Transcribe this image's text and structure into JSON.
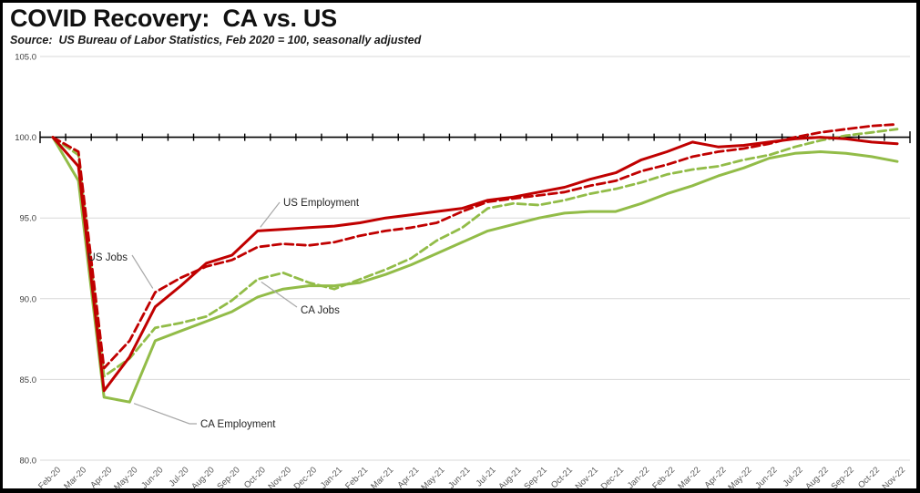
{
  "header": {
    "title": "COVID Recovery:  CA vs. US",
    "source": "Source:  US Bureau of Labor Statistics, Feb 2020 = 100, seasonally adjusted"
  },
  "chart_data": {
    "type": "line",
    "title": "COVID Recovery:  CA vs. US",
    "subtitle": "Source:  US Bureau of Labor Statistics, Feb 2020 = 100, seasonally adjusted",
    "x_categories": [
      "Feb-20",
      "Mar-20",
      "Apr-20",
      "May-20",
      "Jun-20",
      "Jul-20",
      "Aug-20",
      "Sep-20",
      "Oct-20",
      "Nov-20",
      "Dec-20",
      "Jan-21",
      "Feb-21",
      "Mar-21",
      "Apr-21",
      "May-21",
      "Jun-21",
      "Jul-21",
      "Aug-21",
      "Sep-21",
      "Oct-21",
      "Nov-21",
      "Dec-21",
      "Jan-22",
      "Feb-22",
      "Mar-22",
      "Apr-22",
      "May-22",
      "Jun-22",
      "Jul-22",
      "Aug-22",
      "Sep-22",
      "Oct-22",
      "Nov-22"
    ],
    "y_tick_labels": [
      "105.0",
      "100.0",
      "95.0",
      "90.0",
      "85.0",
      "80.0"
    ],
    "ylim": [
      80,
      105
    ],
    "x_axis_crosses_at": 100,
    "grid": "horizontal",
    "legend_position": "none (inline callout labels)",
    "colors": {
      "us": "#C00000",
      "ca": "#92BC48",
      "grid": "#d9d9d9",
      "axis": "#000000",
      "callout": "#a8a8a8",
      "tick_text": "#595959"
    },
    "series": [
      {
        "name": "CA Employment",
        "color": "#92BC48",
        "line_style": "solid",
        "values": [
          100.0,
          97.3,
          83.9,
          83.6,
          87.4,
          88.0,
          88.6,
          89.2,
          90.1,
          90.6,
          90.8,
          90.8,
          91.0,
          91.5,
          92.1,
          92.8,
          93.5,
          94.2,
          94.6,
          95.0,
          95.3,
          95.4,
          95.4,
          95.9,
          96.5,
          97.0,
          97.6,
          98.1,
          98.7,
          99.0,
          99.1,
          99.0,
          98.8,
          98.5
        ]
      },
      {
        "name": "CA Jobs",
        "color": "#92BC48",
        "line_style": "dashed",
        "values": [
          100.0,
          98.9,
          85.2,
          86.3,
          88.2,
          88.5,
          88.9,
          89.9,
          91.2,
          91.6,
          91.0,
          90.6,
          91.2,
          91.8,
          92.5,
          93.6,
          94.4,
          95.6,
          95.9,
          95.8,
          96.1,
          96.5,
          96.8,
          97.2,
          97.7,
          98.0,
          98.2,
          98.6,
          98.9,
          99.4,
          99.8,
          100.1,
          100.3,
          100.5
        ]
      },
      {
        "name": "US Employment",
        "color": "#C00000",
        "line_style": "solid",
        "values": [
          100.0,
          98.2,
          84.3,
          86.4,
          89.5,
          90.8,
          92.2,
          92.7,
          94.2,
          94.3,
          94.4,
          94.5,
          94.7,
          95.0,
          95.2,
          95.4,
          95.6,
          96.1,
          96.3,
          96.6,
          96.9,
          97.4,
          97.8,
          98.6,
          99.1,
          99.7,
          99.4,
          99.5,
          99.7,
          99.9,
          100.0,
          99.9,
          99.7,
          99.6
        ]
      },
      {
        "name": "US Jobs",
        "color": "#C00000",
        "line_style": "dashed",
        "values": [
          100.0,
          99.1,
          85.7,
          87.4,
          90.4,
          91.3,
          92.0,
          92.4,
          93.2,
          93.4,
          93.3,
          93.5,
          93.9,
          94.2,
          94.4,
          94.7,
          95.4,
          96.0,
          96.2,
          96.4,
          96.6,
          97.0,
          97.3,
          97.9,
          98.3,
          98.8,
          99.1,
          99.3,
          99.6,
          100.0,
          100.3,
          100.5,
          100.7,
          100.8
        ]
      }
    ],
    "annotations": [
      {
        "label": "US Jobs",
        "series": "US Jobs",
        "month": "Jun-20"
      },
      {
        "label": "US Employment",
        "series": "US Employment",
        "month": "Oct-20"
      },
      {
        "label": "CA Jobs",
        "series": "CA Jobs",
        "month": "Oct-20"
      },
      {
        "label": "CA Employment",
        "series": "CA Employment",
        "month": "May-20"
      }
    ]
  }
}
